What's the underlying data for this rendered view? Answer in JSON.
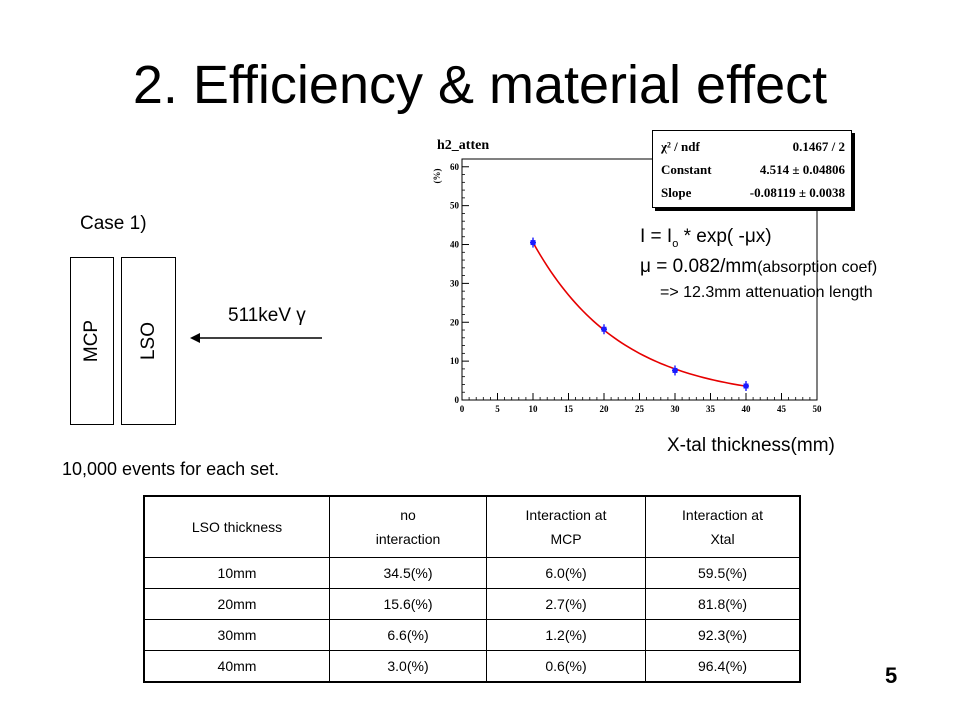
{
  "slide": {
    "title": "2. Efficiency & material effect",
    "case_label": "Case 1)",
    "mcp_label": "MCP",
    "lso_label": "LSO",
    "gamma_label": "511keV γ",
    "events_note": "10,000 events for each set.",
    "page_number": "5"
  },
  "equations": {
    "line1_a": "I = I",
    "line1_sub": "o",
    "line1_b": " * exp( -μx)",
    "line2_a": "μ = 0.082/mm",
    "line2_b": "(absorption coef)",
    "line3": "=> 12.3mm attenuation length"
  },
  "x_axis_caption": "X-tal thickness(mm)",
  "stats_box": {
    "rows": [
      {
        "key": "χ² / ndf",
        "value": "0.1467 / 2"
      },
      {
        "key": "Constant",
        "value": "4.514 ± 0.04806"
      },
      {
        "key": "Slope",
        "value": "-0.08119 ± 0.0038"
      }
    ]
  },
  "chart_data": {
    "type": "scatter",
    "title": "h2_atten",
    "ylabel": "(%)",
    "xlabel": "",
    "xlim": [
      0,
      50
    ],
    "ylim": [
      0,
      62
    ],
    "x_ticks": [
      "0",
      "5",
      "10",
      "15",
      "20",
      "25",
      "30",
      "35",
      "40",
      "45",
      "50"
    ],
    "y_ticks": [
      "0",
      "10",
      "20",
      "30",
      "40",
      "50",
      "60"
    ],
    "points": [
      {
        "x": 10,
        "y": 40.5
      },
      {
        "x": 20,
        "y": 18.2
      },
      {
        "x": 30,
        "y": 7.6
      },
      {
        "x": 40,
        "y": 3.6
      }
    ],
    "fit": {
      "constant": 4.514,
      "slope": -0.08119,
      "x_range": [
        10,
        40
      ]
    },
    "point_color": "#1a1aff",
    "fit_color": "#e60000"
  },
  "table": {
    "headers": [
      [
        "LSO thickness"
      ],
      [
        "no",
        "interaction"
      ],
      [
        "Interaction at",
        "MCP"
      ],
      [
        "Interaction at",
        "Xtal"
      ]
    ],
    "rows": [
      [
        "10mm",
        "34.5(%)",
        "6.0(%)",
        "59.5(%)"
      ],
      [
        "20mm",
        "15.6(%)",
        "2.7(%)",
        "81.8(%)"
      ],
      [
        "30mm",
        "6.6(%)",
        "1.2(%)",
        "92.3(%)"
      ],
      [
        "40mm",
        "3.0(%)",
        "0.6(%)",
        "96.4(%)"
      ]
    ]
  }
}
